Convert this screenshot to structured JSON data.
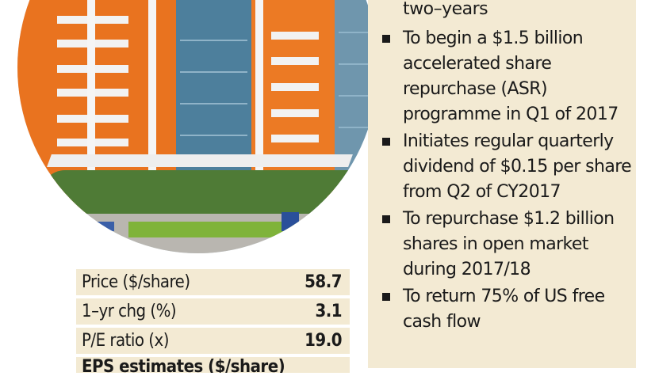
{
  "bullets_continued": "two–years",
  "bullets": [
    {
      "icon": "square-bullet-icon",
      "text": "To begin a $1.5 billion accelerated share repurchase (ASR) programme in Q1 of 2017"
    },
    {
      "icon": "square-bullet-icon",
      "text": "Initiates regular quarterly dividend of $0.15 per share from Q2 of CY2017"
    },
    {
      "icon": "square-bullet-icon",
      "text": "To repurchase $1.2 billion shares in open market during 2017/18"
    },
    {
      "icon": "square-bullet-icon",
      "text": "To return 75% of US free cash flow"
    }
  ],
  "stats": [
    {
      "label": "Price ($/share)",
      "value": "58.7"
    },
    {
      "label": "1–yr chg (%)",
      "value": "3.1"
    },
    {
      "label": "P/E ratio (x)",
      "value": "19.0"
    }
  ],
  "stats_cutoff": "EPS estimates ($/share)",
  "photo_icon": "office-building-photo",
  "colors": {
    "panel_bg": "#f3ead3",
    "building_orange": "#e9731f"
  }
}
